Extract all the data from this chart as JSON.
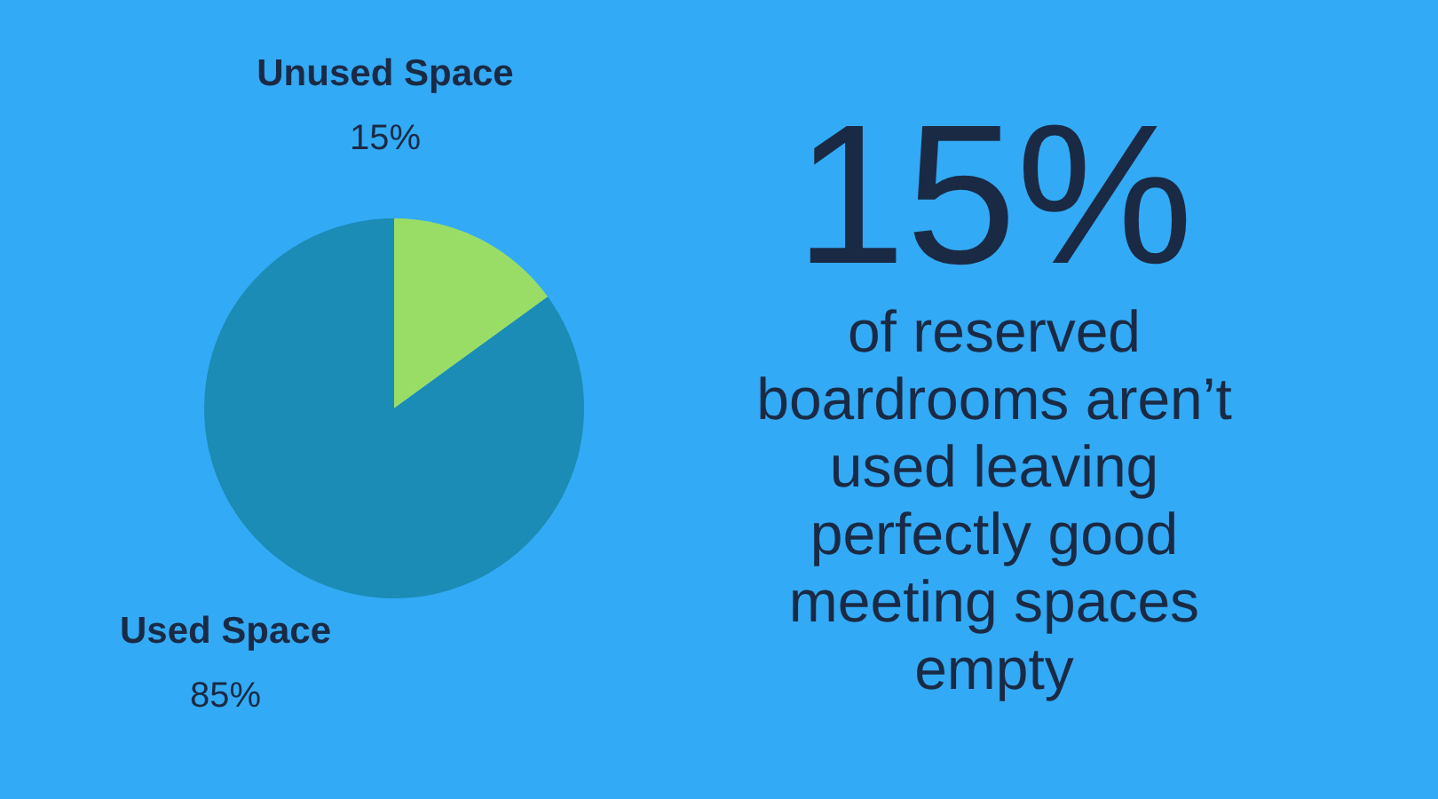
{
  "chart_data": {
    "type": "pie",
    "categories": [
      "Unused Space",
      "Used Space"
    ],
    "values": [
      15,
      85
    ],
    "colors": [
      "#99dd66",
      "#1a8cb5"
    ],
    "value_labels": [
      "15%",
      "85%"
    ],
    "annotations": [
      "15%",
      "of reserved boardrooms aren’t used leaving perfectly good meeting spaces empty"
    ]
  }
}
